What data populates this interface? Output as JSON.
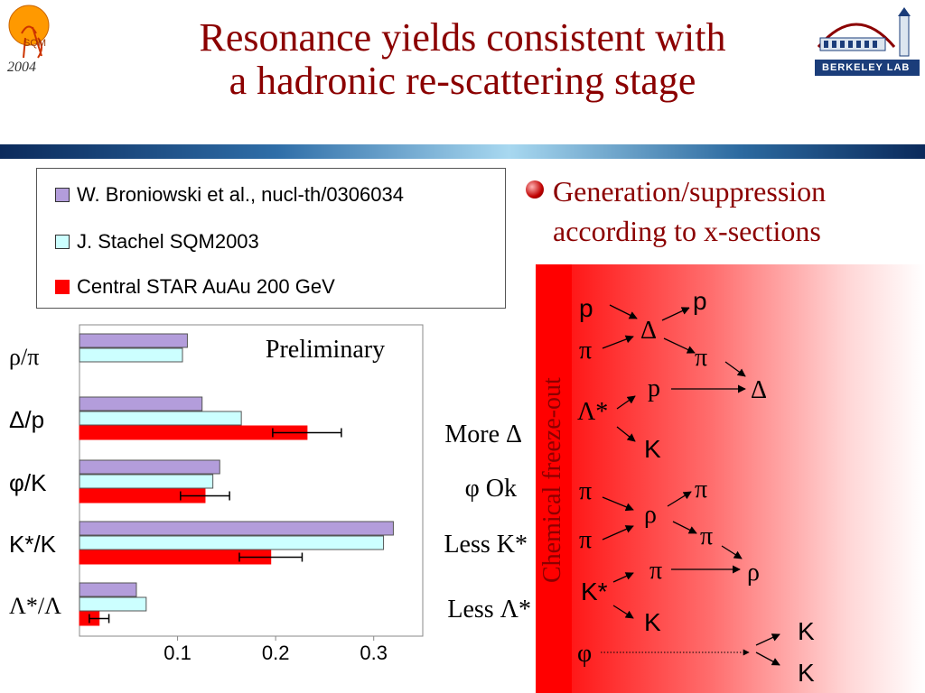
{
  "title": {
    "line1": "Resonance yields consistent with",
    "line2": "a hadronic re-scattering stage"
  },
  "logos": {
    "left_year": "2004",
    "left_mark": "SQM",
    "right_text": "BERKELEY LAB",
    "left_icon": "sun-conference-logo",
    "right_icon": "berkeley-lab-logo"
  },
  "legend": {
    "items": [
      {
        "label": "W. Broniowski et al., nucl-th/0306034",
        "color": "#b39ddb"
      },
      {
        "label": "J. Stachel SQM2003",
        "color": "#ccffff"
      },
      {
        "label": "Central STAR AuAu 200 GeV",
        "color": "#ff0000"
      }
    ]
  },
  "bullet": {
    "line1": "Generation/suppression",
    "line2": "according to x-sections",
    "color": "#8b0000"
  },
  "chart_data": {
    "type": "bar",
    "orientation": "horizontal",
    "annotation": "Preliminary",
    "categories": [
      "ρ/π",
      "Δ/p",
      "φ/K",
      "K*/K",
      "Λ*/Λ"
    ],
    "series": [
      {
        "name": "W. Broniowski et al., nucl-th/0306034",
        "color": "#b39ddb",
        "values": [
          0.11,
          0.125,
          0.143,
          0.32,
          0.058
        ]
      },
      {
        "name": "J. Stachel SQM2003",
        "color": "#ccffff",
        "values": [
          0.105,
          0.165,
          0.136,
          0.31,
          0.068
        ]
      },
      {
        "name": "Central STAR AuAu 200 GeV",
        "color": "#ff0000",
        "values": [
          null,
          0.232,
          0.128,
          0.195,
          0.02
        ],
        "errors": [
          null,
          0.035,
          0.025,
          0.032,
          0.01
        ]
      }
    ],
    "xticks": [
      "0.1",
      "0.2",
      "0.3"
    ],
    "xtick_values": [
      0.1,
      0.2,
      0.3
    ],
    "xlim": [
      0,
      0.35
    ],
    "grid": false,
    "right_notes": [
      "More Δ",
      "φ Ok",
      "Less K*",
      "Less Λ*"
    ]
  },
  "diagram": {
    "vertical_label": "Chemical freeze-out",
    "labels": {
      "p1": "p",
      "p2": "p",
      "delta1": "Δ",
      "pi1": "π",
      "pi2": "π",
      "p3": "p",
      "delta2": "Δ",
      "lambda_star": "Λ*",
      "k1": "K",
      "pi3": "π",
      "pi4": "π",
      "rho1": "ρ",
      "pi5": "π",
      "pi6": "π",
      "k_star": "K*",
      "pi7": "π",
      "rho2": "ρ",
      "k2": "K",
      "phi": "φ",
      "k3": "K",
      "k4": "K"
    }
  }
}
